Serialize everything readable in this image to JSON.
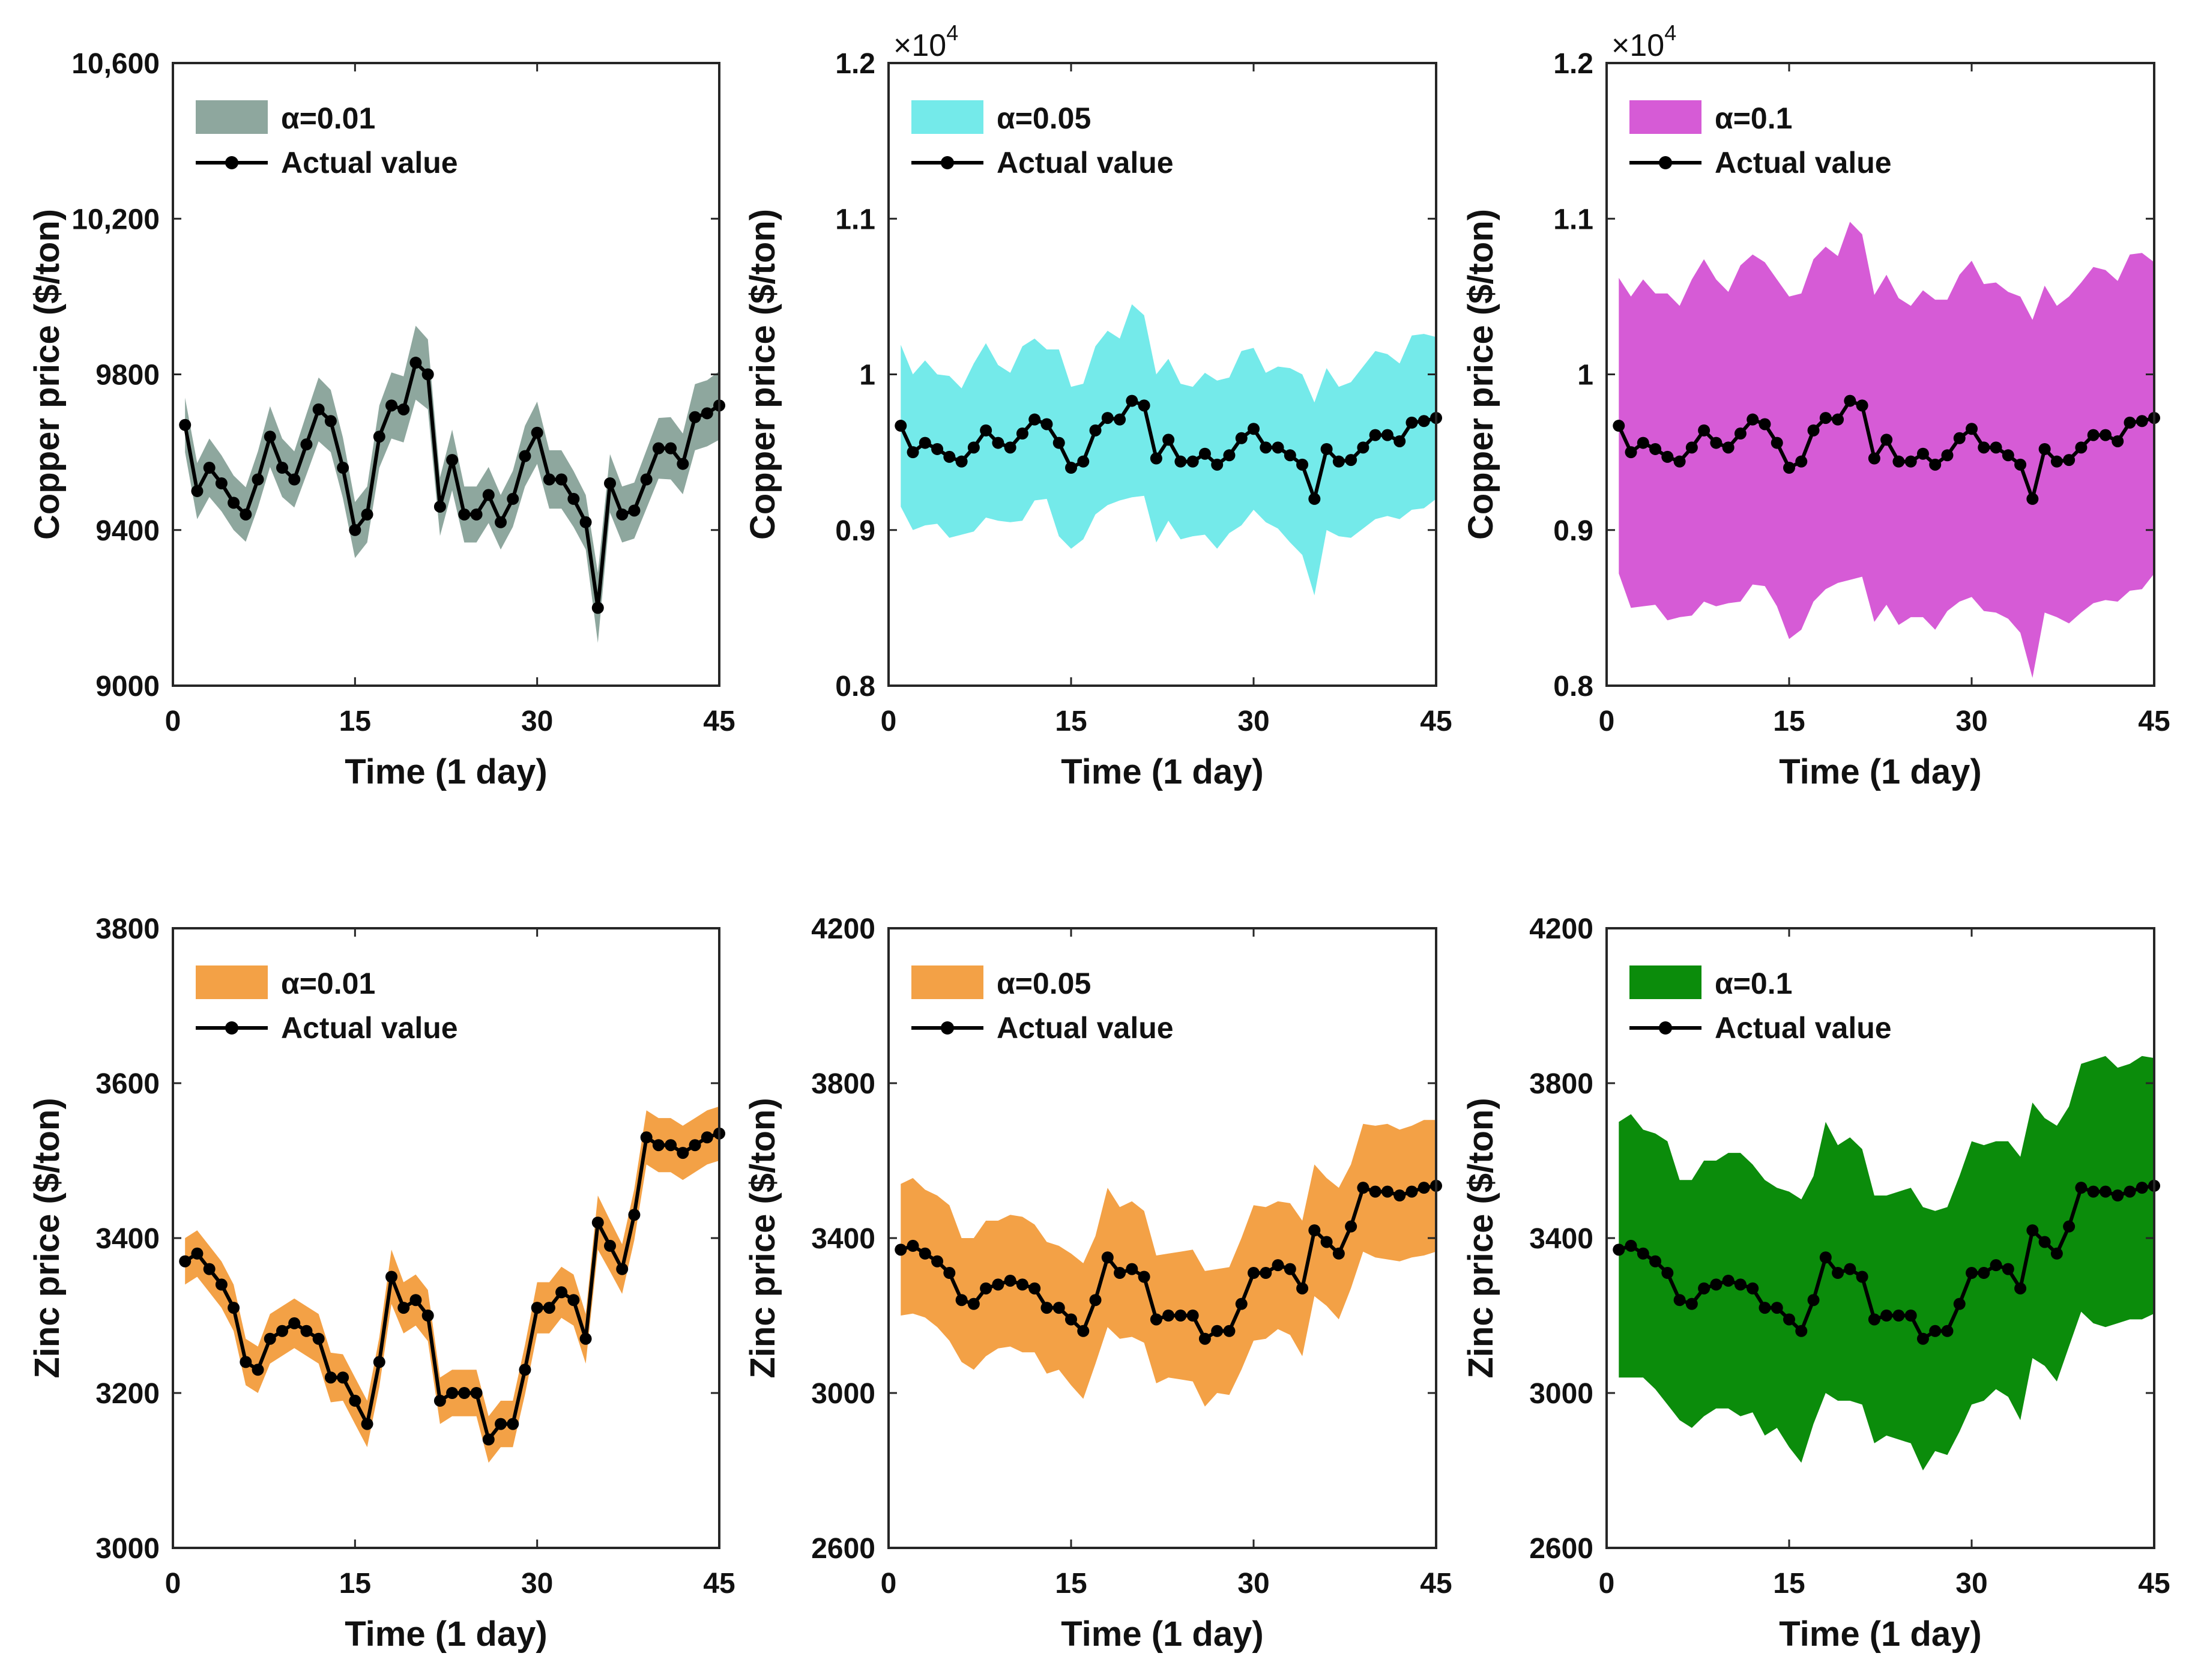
{
  "chart_data": [
    {
      "type": "area",
      "title": "",
      "xlabel": "Time (1 day)",
      "ylabel": "Copper price ($/ton)",
      "xlim": [
        0,
        45
      ],
      "xticks": [
        0,
        15,
        30,
        45
      ],
      "xtick_labels": [
        "0",
        "15",
        "30",
        "45"
      ],
      "ylim": [
        9000,
        10600
      ],
      "yticks": [
        9000,
        9400,
        9800,
        10200,
        10600
      ],
      "ytick_labels": [
        "9000",
        "9400",
        "9800",
        "10,200",
        "10,600"
      ],
      "exponent_label": "",
      "legend": {
        "placement": "top-left",
        "band_label": "α=0.01",
        "line_label": "Actual value"
      },
      "band_color": "#8ea79e",
      "x": [
        1,
        2,
        3,
        4,
        5,
        6,
        7,
        8,
        9,
        10,
        11,
        12,
        13,
        14,
        15,
        16,
        17,
        18,
        19,
        20,
        21,
        22,
        23,
        24,
        25,
        26,
        27,
        28,
        29,
        30,
        31,
        32,
        33,
        34,
        35,
        36,
        37,
        38,
        39,
        40,
        41,
        42,
        43,
        44,
        45
      ],
      "actual": [
        9670,
        9500,
        9560,
        9520,
        9470,
        9440,
        9530,
        9640,
        9560,
        9530,
        9620,
        9710,
        9680,
        9560,
        9400,
        9440,
        9640,
        9720,
        9710,
        9830,
        9800,
        9460,
        9580,
        9440,
        9440,
        9490,
        9420,
        9480,
        9590,
        9650,
        9530,
        9530,
        9480,
        9420,
        9200,
        9520,
        9440,
        9450,
        9530,
        9610,
        9610,
        9570,
        9690,
        9700,
        9720
      ],
      "band_halfwidth": [
        70,
        72,
        75,
        72,
        70,
        70,
        72,
        78,
        75,
        72,
        78,
        82,
        80,
        78,
        72,
        72,
        80,
        85,
        85,
        95,
        90,
        75,
        78,
        72,
        72,
        72,
        70,
        72,
        78,
        80,
        75,
        75,
        72,
        70,
        90,
        75,
        72,
        72,
        75,
        78,
        80,
        78,
        85,
        85,
        88
      ]
    },
    {
      "type": "area",
      "title": "",
      "xlabel": "Time (1 day)",
      "ylabel": "Copper price ($/ton)",
      "xlim": [
        0,
        45
      ],
      "xticks": [
        0,
        15,
        30,
        45
      ],
      "xtick_labels": [
        "0",
        "15",
        "30",
        "45"
      ],
      "ylim": [
        8000,
        12000
      ],
      "yticks": [
        8000,
        9000,
        10000,
        11000,
        12000
      ],
      "ytick_labels": [
        "0.8",
        "0.9",
        "1",
        "1.1",
        "1.2"
      ],
      "exponent_label": "×10",
      "exponent_power": "4",
      "legend": {
        "placement": "top-left",
        "band_label": "α=0.05",
        "line_label": "Actual value"
      },
      "band_color": "#74eaea",
      "x": [
        1,
        2,
        3,
        4,
        5,
        6,
        7,
        8,
        9,
        10,
        11,
        12,
        13,
        14,
        15,
        16,
        17,
        18,
        19,
        20,
        21,
        22,
        23,
        24,
        25,
        26,
        27,
        28,
        29,
        30,
        31,
        32,
        33,
        34,
        35,
        36,
        37,
        38,
        39,
        40,
        41,
        42,
        43,
        44,
        45
      ],
      "actual": [
        9670,
        9500,
        9560,
        9520,
        9470,
        9440,
        9530,
        9640,
        9560,
        9530,
        9620,
        9710,
        9680,
        9560,
        9400,
        9440,
        9640,
        9720,
        9710,
        9830,
        9800,
        9460,
        9580,
        9440,
        9440,
        9490,
        9420,
        9480,
        9590,
        9650,
        9530,
        9530,
        9480,
        9420,
        9200,
        9520,
        9440,
        9450,
        9530,
        9610,
        9610,
        9570,
        9690,
        9700,
        9720
      ],
      "band_halfwidth": [
        520,
        500,
        530,
        480,
        520,
        470,
        540,
        560,
        500,
        480,
        560,
        520,
        480,
        600,
        520,
        500,
        540,
        560,
        520,
        620,
        580,
        540,
        520,
        500,
        480,
        520,
        540,
        500,
        560,
        520,
        480,
        520,
        560,
        580,
        620,
        520,
        480,
        500,
        520,
        540,
        520,
        500,
        560,
        560,
        520
      ]
    },
    {
      "type": "area",
      "title": "",
      "xlabel": "Time (1 day)",
      "ylabel": "Copper price ($/ton)",
      "xlim": [
        0,
        45
      ],
      "xticks": [
        0,
        15,
        30,
        45
      ],
      "xtick_labels": [
        "0",
        "15",
        "30",
        "45"
      ],
      "ylim": [
        8000,
        12000
      ],
      "yticks": [
        8000,
        9000,
        10000,
        11000,
        12000
      ],
      "ytick_labels": [
        "0.8",
        "0.9",
        "1",
        "1.1",
        "1.2"
      ],
      "exponent_label": "×10",
      "exponent_power": "4",
      "legend": {
        "placement": "top-left",
        "band_label": "α=0.1",
        "line_label": "Actual value"
      },
      "band_color": "#d65bd6",
      "x": [
        1,
        2,
        3,
        4,
        5,
        6,
        7,
        8,
        9,
        10,
        11,
        12,
        13,
        14,
        15,
        16,
        17,
        18,
        19,
        20,
        21,
        22,
        23,
        24,
        25,
        26,
        27,
        28,
        29,
        30,
        31,
        32,
        33,
        34,
        35,
        36,
        37,
        38,
        39,
        40,
        41,
        42,
        43,
        44,
        45
      ],
      "actual": [
        9670,
        9500,
        9560,
        9520,
        9470,
        9440,
        9530,
        9640,
        9560,
        9530,
        9620,
        9710,
        9680,
        9560,
        9400,
        9440,
        9640,
        9720,
        9710,
        9830,
        9800,
        9460,
        9580,
        9440,
        9440,
        9490,
        9420,
        9480,
        9590,
        9650,
        9530,
        9530,
        9480,
        9420,
        9200,
        9520,
        9440,
        9450,
        9530,
        9610,
        9610,
        9570,
        9690,
        9700,
        9720
      ],
      "band_halfwidth": [
        950,
        1000,
        1050,
        1000,
        1050,
        1000,
        1080,
        1100,
        1050,
        1000,
        1080,
        1060,
        1040,
        1050,
        1100,
        1080,
        1100,
        1100,
        1050,
        1150,
        1100,
        1050,
        1060,
        1050,
        1000,
        1050,
        1060,
        1000,
        1050,
        1080,
        1050,
        1060,
        1050,
        1080,
        1150,
        1050,
        1000,
        1050,
        1060,
        1080,
        1060,
        1030,
        1080,
        1080,
        1000
      ]
    },
    {
      "type": "area",
      "title": "",
      "xlabel": "Time (1 day)",
      "ylabel": "Zinc price ($/ton)",
      "xlim": [
        0,
        45
      ],
      "xticks": [
        0,
        15,
        30,
        45
      ],
      "xtick_labels": [
        "0",
        "15",
        "30",
        "45"
      ],
      "ylim": [
        3000,
        3800
      ],
      "yticks": [
        3000,
        3200,
        3400,
        3600,
        3800
      ],
      "ytick_labels": [
        "3000",
        "3200",
        "3400",
        "3600",
        "3800"
      ],
      "exponent_label": "",
      "legend": {
        "placement": "top-left",
        "band_label": "α=0.01",
        "line_label": "Actual value"
      },
      "band_color": "#f3a146",
      "x": [
        1,
        2,
        3,
        4,
        5,
        6,
        7,
        8,
        9,
        10,
        11,
        12,
        13,
        14,
        15,
        16,
        17,
        18,
        19,
        20,
        21,
        22,
        23,
        24,
        25,
        26,
        27,
        28,
        29,
        30,
        31,
        32,
        33,
        34,
        35,
        36,
        37,
        38,
        39,
        40,
        41,
        42,
        43,
        44,
        45
      ],
      "actual": [
        3370,
        3380,
        3360,
        3340,
        3310,
        3240,
        3230,
        3270,
        3280,
        3290,
        3280,
        3270,
        3220,
        3220,
        3190,
        3160,
        3240,
        3350,
        3310,
        3320,
        3300,
        3190,
        3200,
        3200,
        3200,
        3140,
        3160,
        3160,
        3230,
        3310,
        3310,
        3330,
        3320,
        3270,
        3420,
        3390,
        3360,
        3430,
        3530,
        3520,
        3520,
        3510,
        3520,
        3530,
        3535
      ],
      "band_halfwidth": [
        30,
        30,
        30,
        30,
        30,
        30,
        30,
        32,
        32,
        32,
        32,
        32,
        32,
        30,
        30,
        30,
        32,
        35,
        33,
        33,
        33,
        30,
        30,
        30,
        30,
        30,
        30,
        30,
        32,
        33,
        33,
        33,
        33,
        32,
        35,
        33,
        32,
        33,
        35,
        35,
        35,
        35,
        35,
        35,
        35
      ]
    },
    {
      "type": "area",
      "title": "",
      "xlabel": "Time (1 day)",
      "ylabel": "Zinc price ($/ton)",
      "xlim": [
        0,
        45
      ],
      "xticks": [
        0,
        15,
        30,
        45
      ],
      "xtick_labels": [
        "0",
        "15",
        "30",
        "45"
      ],
      "ylim": [
        2600,
        4200
      ],
      "yticks": [
        2600,
        3000,
        3400,
        3800,
        4200
      ],
      "ytick_labels": [
        "2600",
        "3000",
        "3400",
        "3800",
        "4200"
      ],
      "exponent_label": "",
      "legend": {
        "placement": "top-left",
        "band_label": "α=0.05",
        "line_label": "Actual value"
      },
      "band_color": "#f3a146",
      "x": [
        1,
        2,
        3,
        4,
        5,
        6,
        7,
        8,
        9,
        10,
        11,
        12,
        13,
        14,
        15,
        16,
        17,
        18,
        19,
        20,
        21,
        22,
        23,
        24,
        25,
        26,
        27,
        28,
        29,
        30,
        31,
        32,
        33,
        34,
        35,
        36,
        37,
        38,
        39,
        40,
        41,
        42,
        43,
        44,
        45
      ],
      "actual": [
        3370,
        3380,
        3360,
        3340,
        3310,
        3240,
        3230,
        3270,
        3280,
        3290,
        3280,
        3270,
        3220,
        3220,
        3190,
        3160,
        3240,
        3350,
        3310,
        3320,
        3300,
        3190,
        3200,
        3200,
        3200,
        3140,
        3160,
        3160,
        3230,
        3310,
        3310,
        3330,
        3320,
        3270,
        3420,
        3390,
        3360,
        3430,
        3530,
        3520,
        3520,
        3510,
        3520,
        3530,
        3535
      ],
      "band_halfwidth": [
        170,
        175,
        165,
        170,
        175,
        160,
        170,
        175,
        165,
        170,
        175,
        165,
        170,
        160,
        170,
        175,
        165,
        180,
        170,
        175,
        170,
        165,
        160,
        165,
        170,
        175,
        160,
        165,
        170,
        175,
        170,
        165,
        170,
        175,
        170,
        165,
        170,
        160,
        165,
        170,
        175,
        170,
        170,
        175,
        170
      ]
    },
    {
      "type": "area",
      "title": "",
      "xlabel": "Time (1 day)",
      "ylabel": "Zinc price ($/ton)",
      "xlim": [
        0,
        45
      ],
      "xticks": [
        0,
        15,
        30,
        45
      ],
      "xtick_labels": [
        "0",
        "15",
        "30",
        "45"
      ],
      "ylim": [
        2600,
        4200
      ],
      "yticks": [
        2600,
        3000,
        3400,
        3800,
        4200
      ],
      "ytick_labels": [
        "2600",
        "3000",
        "3400",
        "3800",
        "4200"
      ],
      "exponent_label": "",
      "legend": {
        "placement": "top-left",
        "band_label": "α=0.1",
        "line_label": "Actual value"
      },
      "band_color": "#0b8c0b",
      "x": [
        1,
        2,
        3,
        4,
        5,
        6,
        7,
        8,
        9,
        10,
        11,
        12,
        13,
        14,
        15,
        16,
        17,
        18,
        19,
        20,
        21,
        22,
        23,
        24,
        25,
        26,
        27,
        28,
        29,
        30,
        31,
        32,
        33,
        34,
        35,
        36,
        37,
        38,
        39,
        40,
        41,
        42,
        43,
        44,
        45
      ],
      "actual": [
        3370,
        3380,
        3360,
        3340,
        3310,
        3240,
        3230,
        3270,
        3280,
        3290,
        3280,
        3270,
        3220,
        3220,
        3190,
        3160,
        3240,
        3350,
        3310,
        3320,
        3300,
        3190,
        3200,
        3200,
        3200,
        3140,
        3160,
        3160,
        3230,
        3310,
        3310,
        3330,
        3320,
        3270,
        3420,
        3390,
        3360,
        3430,
        3530,
        3520,
        3520,
        3510,
        3520,
        3530,
        3535
      ],
      "band_halfwidth": [
        330,
        340,
        320,
        330,
        340,
        310,
        320,
        330,
        320,
        330,
        340,
        320,
        330,
        310,
        330,
        340,
        320,
        350,
        330,
        340,
        330,
        320,
        310,
        320,
        330,
        340,
        310,
        320,
        330,
        340,
        330,
        320,
        330,
        340,
        330,
        320,
        330,
        310,
        320,
        340,
        350,
        330,
        330,
        340,
        330
      ]
    }
  ]
}
